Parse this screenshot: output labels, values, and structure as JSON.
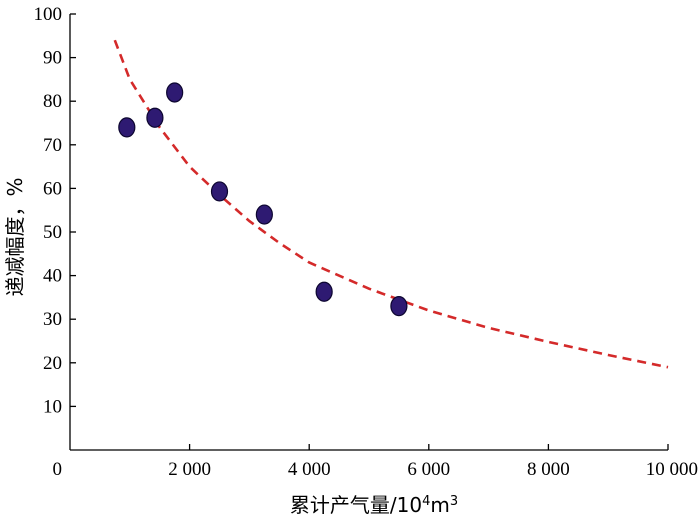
{
  "chart_data": {
    "type": "scatter",
    "title": "",
    "xlabel": "累计产气量/10",
    "xlabel_sup": "4",
    "xlabel_tail": "m",
    "xlabel_sup2": "3",
    "ylabel": "递减幅度，%",
    "xlim": [
      0,
      10000
    ],
    "ylim": [
      0,
      100
    ],
    "x_ticks": [
      0,
      2000,
      4000,
      6000,
      8000,
      10000
    ],
    "x_tick_labels": [
      "0",
      "2 000",
      "4 000",
      "6 000",
      "8 000",
      "10 000"
    ],
    "y_ticks": [
      10,
      20,
      30,
      40,
      50,
      60,
      70,
      80,
      90,
      100
    ],
    "y_tick_labels": [
      "10",
      "20",
      "30",
      "40",
      "50",
      "60",
      "70",
      "80",
      "90",
      "100"
    ],
    "grid": false,
    "legend": "none",
    "series": [
      {
        "type": "scatter",
        "color": "#2e1a72",
        "points": [
          {
            "x": 950,
            "y": 74
          },
          {
            "x": 1420,
            "y": 76.2
          },
          {
            "x": 1750,
            "y": 82
          },
          {
            "x": 2500,
            "y": 59.3
          },
          {
            "x": 3250,
            "y": 54
          },
          {
            "x": 4250,
            "y": 36.3
          },
          {
            "x": 5500,
            "y": 33
          }
        ]
      },
      {
        "type": "line",
        "style": "dashed",
        "color": "#d42a2a",
        "points": [
          {
            "x": 750,
            "y": 94
          },
          {
            "x": 1000,
            "y": 85
          },
          {
            "x": 1500,
            "y": 74
          },
          {
            "x": 2000,
            "y": 65
          },
          {
            "x": 2500,
            "y": 58.5
          },
          {
            "x": 3000,
            "y": 52.5
          },
          {
            "x": 3500,
            "y": 47.5
          },
          {
            "x": 4000,
            "y": 43
          },
          {
            "x": 5000,
            "y": 37
          },
          {
            "x": 6000,
            "y": 32
          },
          {
            "x": 7000,
            "y": 28
          },
          {
            "x": 8000,
            "y": 24.8
          },
          {
            "x": 9000,
            "y": 21.8
          },
          {
            "x": 10000,
            "y": 19
          }
        ]
      }
    ]
  }
}
